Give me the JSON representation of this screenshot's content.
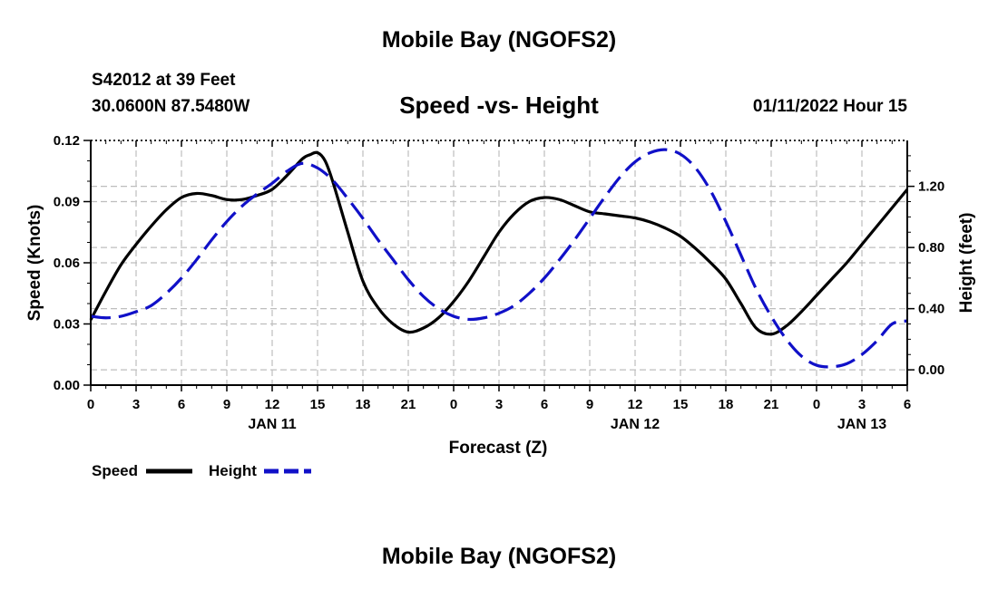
{
  "header": {
    "title": "Mobile Bay (NGOFS2)",
    "station_line": "S42012 at 39 Feet",
    "coords_line": "30.0600N  87.5480W",
    "plot_title": "Speed -vs- Height",
    "forecast_time": "01/11/2022 Hour 15"
  },
  "footer": {
    "title": "Mobile Bay (NGOFS2)"
  },
  "colors": {
    "speed": "#000000",
    "height": "#1010c8",
    "grid": "#bdbdbd"
  },
  "chart_data": {
    "type": "line",
    "title": "Speed -vs- Height",
    "xlabel": "Forecast (Z)",
    "ylabel": "Speed (Knots)",
    "y2label": "Height (feet)",
    "x_unit": "hours from JAN 11 00Z",
    "xlim": [
      0,
      54
    ],
    "ylim": [
      0,
      0.12
    ],
    "y2lim": [
      -0.1,
      1.5
    ],
    "x_ticks": [
      0,
      3,
      6,
      9,
      12,
      15,
      18,
      21,
      24,
      27,
      30,
      33,
      36,
      39,
      42,
      45,
      48,
      51,
      54
    ],
    "x_tick_labels": [
      "0",
      "3",
      "6",
      "9",
      "12",
      "15",
      "18",
      "21",
      "0",
      "3",
      "6",
      "9",
      "12",
      "15",
      "18",
      "21",
      "0",
      "3",
      "6"
    ],
    "date_labels": [
      {
        "x": 12,
        "label": "JAN 11"
      },
      {
        "x": 36,
        "label": "JAN 12"
      },
      {
        "x": 51,
        "label": "JAN 13"
      }
    ],
    "y_ticks": [
      0.0,
      0.03,
      0.06,
      0.09,
      0.12
    ],
    "y_tick_labels": [
      "0.00",
      "0.03",
      "0.06",
      "0.09",
      "0.12"
    ],
    "y2_ticks": [
      0.0,
      0.4,
      0.8,
      1.2
    ],
    "y2_tick_labels": [
      "0.00",
      "0.40",
      "0.80",
      "1.20"
    ],
    "grid": true,
    "legend_placement": "bottom-left",
    "series": [
      {
        "name": "Speed",
        "axis": "left",
        "style": "solid",
        "x": [
          0,
          1,
          2,
          3,
          4,
          5,
          6,
          7,
          8,
          9,
          10,
          11,
          12,
          13,
          14,
          14.5,
          15,
          15.5,
          16,
          17,
          18,
          19,
          20,
          21,
          22,
          23,
          24,
          25,
          26,
          27,
          28,
          29,
          30,
          31,
          32,
          33,
          34,
          35,
          36,
          37,
          38,
          39,
          40,
          41,
          42,
          43,
          44,
          45,
          46,
          47,
          48,
          49,
          50,
          51,
          52,
          53,
          54
        ],
        "y": [
          0.032,
          0.046,
          0.059,
          0.069,
          0.078,
          0.086,
          0.092,
          0.094,
          0.093,
          0.091,
          0.091,
          0.093,
          0.096,
          0.103,
          0.111,
          0.113,
          0.114,
          0.11,
          0.1,
          0.075,
          0.051,
          0.038,
          0.03,
          0.026,
          0.028,
          0.033,
          0.041,
          0.051,
          0.063,
          0.075,
          0.084,
          0.09,
          0.092,
          0.091,
          0.088,
          0.085,
          0.084,
          0.083,
          0.082,
          0.08,
          0.077,
          0.073,
          0.067,
          0.06,
          0.052,
          0.04,
          0.028,
          0.025,
          0.029,
          0.036,
          0.044,
          0.052,
          0.06,
          0.069,
          0.078,
          0.087,
          0.096
        ]
      },
      {
        "name": "Height",
        "axis": "right",
        "style": "dashed",
        "x": [
          0,
          1,
          2,
          3,
          4,
          5,
          6,
          7,
          8,
          9,
          10,
          11,
          12,
          13,
          14,
          15,
          16,
          17,
          18,
          19,
          20,
          21,
          22,
          23,
          24,
          25,
          26,
          27,
          28,
          29,
          30,
          31,
          32,
          33,
          34,
          35,
          36,
          37,
          38,
          39,
          40,
          41,
          42,
          43,
          44,
          45,
          46,
          47,
          48,
          49,
          50,
          51,
          52,
          53,
          54
        ],
        "y": [
          0.35,
          0.34,
          0.35,
          0.38,
          0.42,
          0.5,
          0.6,
          0.72,
          0.85,
          0.97,
          1.07,
          1.15,
          1.22,
          1.3,
          1.35,
          1.32,
          1.24,
          1.12,
          0.99,
          0.85,
          0.72,
          0.59,
          0.48,
          0.4,
          0.35,
          0.33,
          0.34,
          0.37,
          0.42,
          0.5,
          0.6,
          0.72,
          0.85,
          0.99,
          1.13,
          1.26,
          1.36,
          1.42,
          1.44,
          1.41,
          1.32,
          1.17,
          0.97,
          0.75,
          0.53,
          0.35,
          0.2,
          0.09,
          0.03,
          0.02,
          0.04,
          0.1,
          0.19,
          0.3,
          0.32
        ]
      }
    ]
  }
}
